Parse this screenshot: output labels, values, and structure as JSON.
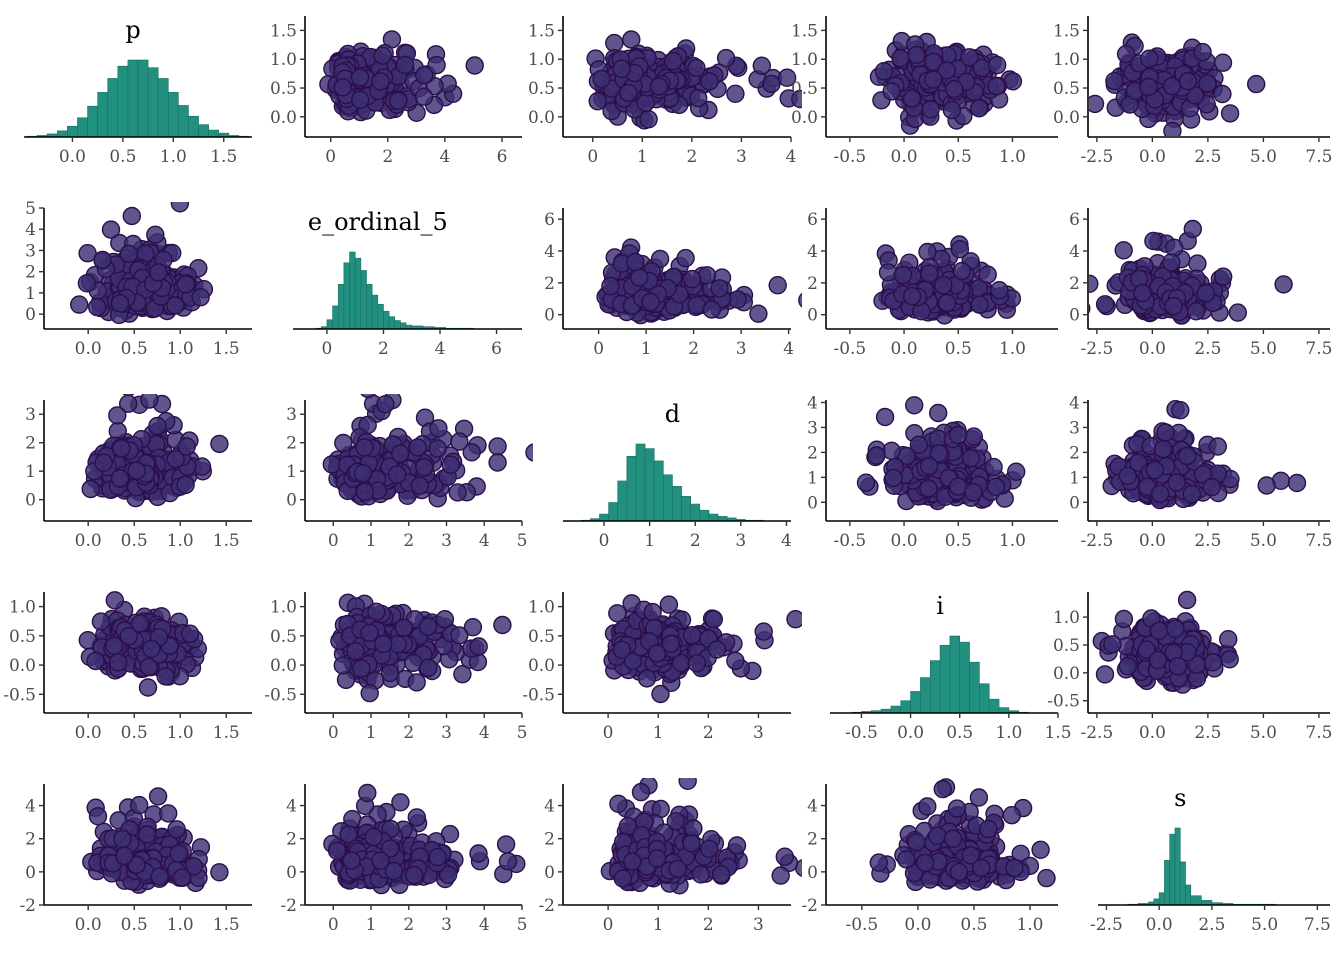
{
  "chart_data": {
    "type": "scatter",
    "layout": "pairs-matrix",
    "variables": [
      "p",
      "e_ordinal_5",
      "d",
      "i",
      "s"
    ],
    "colors": {
      "hist_fill": "#21907f",
      "hist_edge": "#1b6e63",
      "point_fill": "#3d2f73",
      "point_edge": "#2c0f4a"
    },
    "domains": {
      "p": [
        -0.48,
        1.78
      ],
      "e_ordinal_5": [
        -1.2,
        6.9
      ],
      "d": [
        -0.9,
        4.1
      ],
      "i": [
        -0.82,
        1.5
      ],
      "s": [
        -2.9,
        8.1
      ]
    },
    "ticks": {
      "p": [
        0.0,
        0.5,
        1.0,
        1.5
      ],
      "e_ordinal_5": [
        0,
        2,
        4,
        6
      ],
      "d": [
        0,
        1,
        2,
        3,
        4
      ],
      "i": [
        -0.5,
        0.0,
        0.5,
        1.0,
        1.5
      ],
      "s": [
        -2.5,
        0.0,
        2.5,
        5.0,
        7.5
      ]
    },
    "panel_axes": [
      {
        "col": 1,
        "row": 0,
        "xticks": [
          0,
          2,
          4,
          6
        ],
        "xlim": [
          -0.9,
          6.7
        ],
        "yticks": [
          0.0,
          0.5,
          1.0,
          1.5
        ],
        "ylim": [
          -0.35,
          1.75
        ]
      },
      {
        "col": 2,
        "row": 0,
        "xticks": [
          0,
          1,
          2,
          3,
          4
        ],
        "xlim": [
          -0.6,
          4.0
        ],
        "yticks": [
          0.0,
          0.5,
          1.0,
          1.5
        ],
        "ylim": [
          -0.35,
          1.75
        ]
      },
      {
        "col": 3,
        "row": 0,
        "xticks": [
          -0.5,
          0.0,
          0.5,
          1.0
        ],
        "xlim": [
          -0.72,
          1.42
        ],
        "yticks": [
          0.0,
          0.5,
          1.0,
          1.5
        ],
        "ylim": [
          -0.35,
          1.75
        ]
      },
      {
        "col": 4,
        "row": 0,
        "xticks": [
          -2.5,
          0.0,
          2.5,
          5.0,
          7.5
        ],
        "xlim": [
          -2.9,
          8.0
        ],
        "yticks": [
          0.0,
          0.5,
          1.0,
          1.5
        ],
        "ylim": [
          -0.35,
          1.75
        ]
      },
      {
        "col": 0,
        "row": 1,
        "xticks": [
          0.0,
          0.5,
          1.0,
          1.5
        ],
        "xlim": [
          -0.48,
          1.78
        ],
        "yticks": [
          0,
          1,
          2,
          3,
          4,
          5
        ],
        "ylim": [
          -0.7,
          5.0
        ]
      },
      {
        "col": 2,
        "row": 1,
        "xticks": [
          0,
          1,
          2,
          3,
          4
        ],
        "xlim": [
          -0.75,
          4.05
        ],
        "yticks": [
          0,
          2,
          4,
          6
        ],
        "ylim": [
          -0.9,
          6.7
        ]
      },
      {
        "col": 3,
        "row": 1,
        "xticks": [
          -0.5,
          0.0,
          0.5,
          1.0
        ],
        "xlim": [
          -0.72,
          1.42
        ],
        "yticks": [
          0,
          2,
          4,
          6
        ],
        "ylim": [
          -0.9,
          6.7
        ]
      },
      {
        "col": 4,
        "row": 1,
        "xticks": [
          -2.5,
          0.0,
          2.5,
          5.0,
          7.5
        ],
        "xlim": [
          -2.9,
          8.0
        ],
        "yticks": [
          0,
          2,
          4,
          6
        ],
        "ylim": [
          -0.9,
          6.7
        ]
      },
      {
        "col": 0,
        "row": 2,
        "xticks": [
          0.0,
          0.5,
          1.0,
          1.5
        ],
        "xlim": [
          -0.48,
          1.78
        ],
        "yticks": [
          0,
          1,
          2,
          3
        ],
        "ylim": [
          -0.75,
          3.5
        ]
      },
      {
        "col": 1,
        "row": 2,
        "xticks": [
          0,
          1,
          2,
          3,
          4,
          5
        ],
        "xlim": [
          -0.75,
          5.0
        ],
        "yticks": [
          0,
          1,
          2,
          3
        ],
        "ylim": [
          -0.75,
          3.5
        ]
      },
      {
        "col": 3,
        "row": 2,
        "xticks": [
          -0.5,
          0.0,
          0.5,
          1.0
        ],
        "xlim": [
          -0.72,
          1.42
        ],
        "yticks": [
          0,
          1,
          2,
          3,
          4
        ],
        "ylim": [
          -0.75,
          4.1
        ]
      },
      {
        "col": 4,
        "row": 2,
        "xticks": [
          -2.5,
          0.0,
          2.5,
          5.0,
          7.5
        ],
        "xlim": [
          -2.9,
          8.0
        ],
        "yticks": [
          0,
          1,
          2,
          3,
          4
        ],
        "ylim": [
          -0.75,
          4.1
        ]
      },
      {
        "col": 0,
        "row": 3,
        "xticks": [
          0.0,
          0.5,
          1.0,
          1.5
        ],
        "xlim": [
          -0.48,
          1.78
        ],
        "yticks": [
          -0.5,
          0.0,
          0.5,
          1.0
        ],
        "ylim": [
          -0.82,
          1.25
        ]
      },
      {
        "col": 1,
        "row": 3,
        "xticks": [
          0,
          1,
          2,
          3,
          4,
          5
        ],
        "xlim": [
          -0.75,
          5.0
        ],
        "yticks": [
          -0.5,
          0.0,
          0.5,
          1.0
        ],
        "ylim": [
          -0.82,
          1.25
        ]
      },
      {
        "col": 2,
        "row": 3,
        "xticks": [
          0,
          1,
          2,
          3
        ],
        "xlim": [
          -0.9,
          3.65
        ],
        "yticks": [
          -0.5,
          0.0,
          0.5,
          1.0
        ],
        "ylim": [
          -0.82,
          1.25
        ]
      },
      {
        "col": 4,
        "row": 3,
        "xticks": [
          -2.5,
          0.0,
          2.5,
          5.0,
          7.5
        ],
        "xlim": [
          -2.9,
          8.0
        ],
        "yticks": [
          -0.5,
          0.0,
          0.5,
          1.0
        ],
        "ylim": [
          -0.72,
          1.45
        ]
      },
      {
        "col": 0,
        "row": 4,
        "xticks": [
          0.0,
          0.5,
          1.0,
          1.5
        ],
        "xlim": [
          -0.48,
          1.78
        ],
        "yticks": [
          -2,
          0,
          2,
          4
        ],
        "ylim": [
          -2.0,
          5.3
        ]
      },
      {
        "col": 1,
        "row": 4,
        "xticks": [
          0,
          1,
          2,
          3,
          4,
          5
        ],
        "xlim": [
          -0.75,
          5.0
        ],
        "yticks": [
          -2,
          0,
          2,
          4
        ],
        "ylim": [
          -2.0,
          5.3
        ]
      },
      {
        "col": 2,
        "row": 4,
        "xticks": [
          0,
          1,
          2,
          3
        ],
        "xlim": [
          -0.9,
          3.65
        ],
        "yticks": [
          -2,
          0,
          2,
          4
        ],
        "ylim": [
          -2.0,
          5.3
        ]
      },
      {
        "col": 3,
        "row": 4,
        "xticks": [
          -0.5,
          0.0,
          0.5,
          1.0
        ],
        "xlim": [
          -0.82,
          1.25
        ],
        "yticks": [
          -2,
          0,
          2,
          4
        ],
        "ylim": [
          -2.0,
          5.3
        ]
      }
    ],
    "diagonal": [
      {
        "var": "p",
        "xticks": [
          0.0,
          0.5,
          1.0,
          1.5
        ],
        "xlim": [
          -0.48,
          1.78
        ],
        "bins": [
          -0.45,
          -0.35,
          -0.25,
          -0.15,
          -0.05,
          0.05,
          0.15,
          0.25,
          0.35,
          0.45,
          0.55,
          0.65,
          0.75,
          0.85,
          0.95,
          1.05,
          1.15,
          1.25,
          1.35,
          1.45,
          1.55,
          1.65
        ],
        "counts": [
          1,
          2,
          4,
          8,
          14,
          25,
          40,
          58,
          76,
          92,
          100,
          100,
          90,
          76,
          58,
          41,
          27,
          16,
          9,
          5,
          2,
          1
        ]
      },
      {
        "var": "e_ordinal_5",
        "xticks": [
          0,
          2,
          4,
          6
        ],
        "xlim": [
          -1.2,
          6.9
        ],
        "bins": [
          -0.4,
          -0.2,
          0.0,
          0.2,
          0.4,
          0.6,
          0.8,
          1.0,
          1.2,
          1.4,
          1.6,
          1.8,
          2.0,
          2.2,
          2.4,
          2.6,
          2.8,
          3.0,
          3.4,
          3.8,
          4.2,
          4.6,
          5.0
        ],
        "counts": [
          1,
          3,
          12,
          30,
          58,
          86,
          100,
          92,
          76,
          58,
          44,
          32,
          23,
          16,
          11,
          8,
          5,
          4,
          3,
          2,
          1,
          1,
          1
        ]
      },
      {
        "var": "d",
        "xticks": [
          0,
          1,
          2,
          3,
          4
        ],
        "xlim": [
          -0.9,
          4.1
        ],
        "bins": [
          -0.5,
          -0.3,
          -0.1,
          0.1,
          0.3,
          0.5,
          0.7,
          0.9,
          1.1,
          1.3,
          1.5,
          1.7,
          1.9,
          2.1,
          2.3,
          2.5,
          2.7,
          2.9,
          3.1,
          3.3
        ],
        "counts": [
          1,
          3,
          9,
          24,
          52,
          84,
          100,
          94,
          78,
          60,
          45,
          32,
          22,
          14,
          9,
          6,
          4,
          2,
          1,
          1
        ]
      },
      {
        "var": "i",
        "xticks": [
          -0.5,
          0.0,
          0.5,
          1.0,
          1.5
        ],
        "xlim": [
          -0.82,
          1.5
        ],
        "bins": [
          -0.6,
          -0.5,
          -0.4,
          -0.3,
          -0.2,
          -0.1,
          0.0,
          0.1,
          0.2,
          0.3,
          0.4,
          0.5,
          0.6,
          0.7,
          0.8,
          0.9,
          1.0,
          1.1
        ],
        "counts": [
          1,
          2,
          3,
          5,
          9,
          16,
          28,
          46,
          68,
          88,
          100,
          92,
          66,
          38,
          18,
          7,
          3,
          1
        ]
      },
      {
        "var": "s",
        "xticks": [
          -2.5,
          0.0,
          2.5,
          5.0,
          7.5
        ],
        "xlim": [
          -2.9,
          8.1
        ],
        "bins": [
          -1.5,
          -1.0,
          -0.5,
          -0.25,
          0.0,
          0.25,
          0.5,
          0.75,
          1.0,
          1.25,
          1.5,
          2.0,
          2.5,
          3.0,
          3.5,
          4.0,
          5.0
        ],
        "counts": [
          1,
          2,
          4,
          8,
          16,
          58,
          92,
          100,
          56,
          26,
          12,
          6,
          3,
          2,
          1,
          1,
          1
        ]
      }
    ],
    "scatter_summary": {
      "p": {
        "mean": 0.6,
        "sd": 0.25
      },
      "e_ordinal_5": {
        "mean": 1.2,
        "sd": 0.75
      },
      "d": {
        "mean": 1.0,
        "sd": 0.6
      },
      "i": {
        "mean": 0.35,
        "sd": 0.25
      },
      "s": {
        "mean": 0.7,
        "sd": 0.9
      }
    }
  }
}
